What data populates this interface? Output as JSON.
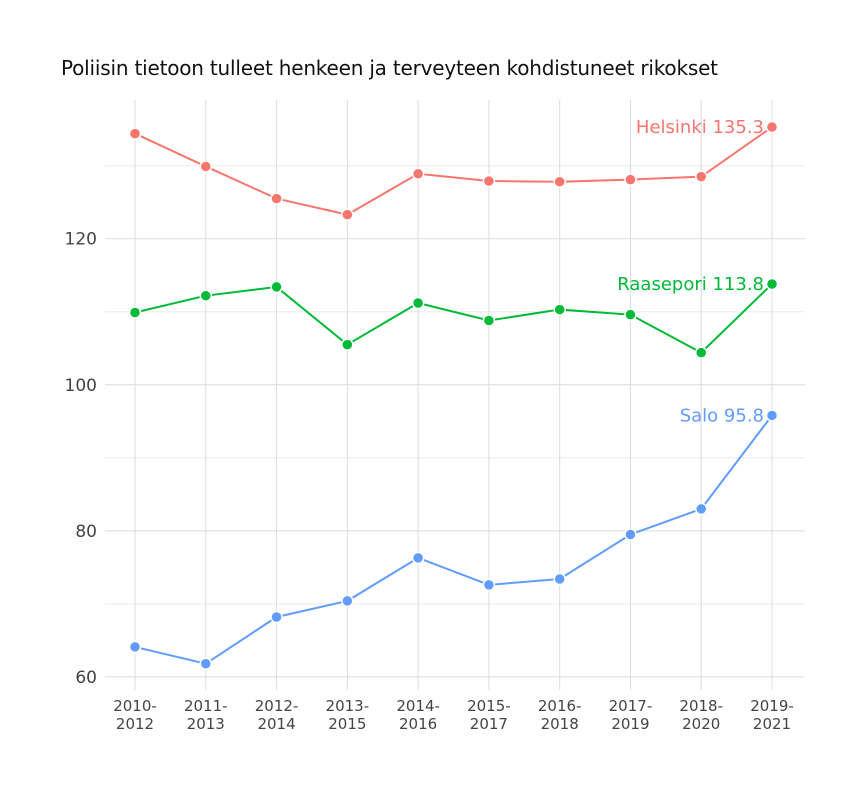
{
  "chart_data": {
    "type": "line",
    "title": "Poliisin tietoon tulleet henkeen ja terveyteen kohdistuneet rikokset",
    "xlabel": "",
    "ylabel": "",
    "categories": [
      "2010-2012",
      "2011-2013",
      "2012-2014",
      "2013-2015",
      "2014-2016",
      "2015-2017",
      "2016-2018",
      "2017-2019",
      "2018-2020",
      "2019-2021"
    ],
    "ylim": [
      58.2,
      139
    ],
    "yticks": [
      60,
      80,
      100,
      120
    ],
    "grid": true,
    "legend": "none (direct end labels)",
    "series": [
      {
        "name": "Helsinki",
        "end_label": "Helsinki 135.3",
        "color": "#F8766D",
        "values": [
          134.4,
          129.9,
          125.5,
          123.3,
          128.9,
          127.9,
          127.8,
          128.1,
          128.5,
          135.3
        ]
      },
      {
        "name": "Raasepori",
        "end_label": "Raasepori 113.8",
        "color": "#00BA38",
        "values": [
          109.9,
          112.2,
          113.4,
          105.5,
          111.2,
          108.8,
          110.3,
          109.6,
          104.4,
          113.8
        ]
      },
      {
        "name": "Salo",
        "end_label": "Salo 95.8",
        "color": "#619CFF",
        "values": [
          64.1,
          61.8,
          68.2,
          70.4,
          76.3,
          72.6,
          73.4,
          79.5,
          83.0,
          95.8
        ]
      }
    ]
  }
}
